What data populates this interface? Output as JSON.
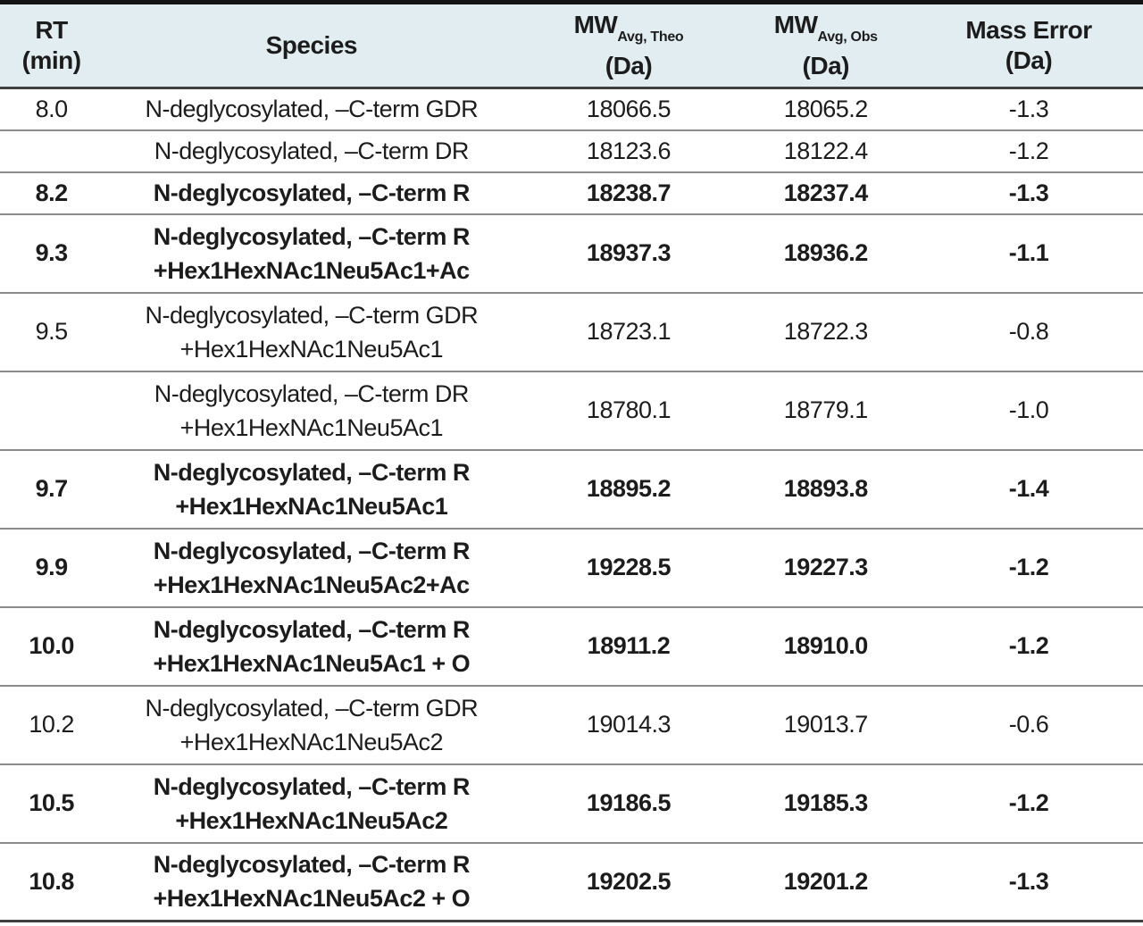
{
  "colors": {
    "header_bg": "#e2edf1",
    "border_dark": "#141414",
    "border_gray": "#8c8c8c",
    "text": "#1c1c1c"
  },
  "table": {
    "headers": [
      {
        "line1": "RT",
        "sub": "",
        "line2": "(min)"
      },
      {
        "line1": "Species",
        "sub": "",
        "line2": ""
      },
      {
        "line1": "MW",
        "sub": "Avg, Theo",
        "line2": "(Da)"
      },
      {
        "line1": "MW",
        "sub": "Avg, Obs",
        "line2": "(Da)"
      },
      {
        "line1": "Mass Error",
        "sub": "",
        "line2": "(Da)"
      }
    ],
    "rows": [
      {
        "rt": "8.0",
        "species_line1": "N-deglycosylated, –C-term GDR",
        "species_line2": "",
        "mw_theo": "18066.5",
        "mw_obs": "18065.2",
        "mass_error": "-1.3",
        "bold": false
      },
      {
        "rt": "",
        "species_line1": "N-deglycosylated, –C-term DR",
        "species_line2": "",
        "mw_theo": "18123.6",
        "mw_obs": "18122.4",
        "mass_error": "-1.2",
        "bold": false
      },
      {
        "rt": "8.2",
        "species_line1": "N-deglycosylated, –C-term R",
        "species_line2": "",
        "mw_theo": "18238.7",
        "mw_obs": "18237.4",
        "mass_error": "-1.3",
        "bold": true
      },
      {
        "rt": "9.3",
        "species_line1": "N-deglycosylated, –C-term R",
        "species_line2": "+Hex1HexNAc1Neu5Ac1+Ac",
        "mw_theo": "18937.3",
        "mw_obs": "18936.2",
        "mass_error": "-1.1",
        "bold": true
      },
      {
        "rt": "9.5",
        "species_line1": "N-deglycosylated, –C-term GDR",
        "species_line2": "+Hex1HexNAc1Neu5Ac1",
        "mw_theo": "18723.1",
        "mw_obs": "18722.3",
        "mass_error": "-0.8",
        "bold": false
      },
      {
        "rt": "",
        "species_line1": "N-deglycosylated, –C-term DR",
        "species_line2": "+Hex1HexNAc1Neu5Ac1",
        "mw_theo": "18780.1",
        "mw_obs": "18779.1",
        "mass_error": "-1.0",
        "bold": false
      },
      {
        "rt": "9.7",
        "species_line1": "N-deglycosylated, –C-term R",
        "species_line2": "+Hex1HexNAc1Neu5Ac1",
        "mw_theo": "18895.2",
        "mw_obs": "18893.8",
        "mass_error": "-1.4",
        "bold": true
      },
      {
        "rt": "9.9",
        "species_line1": "N-deglycosylated, –C-term R",
        "species_line2": "+Hex1HexNAc1Neu5Ac2+Ac",
        "mw_theo": "19228.5",
        "mw_obs": "19227.3",
        "mass_error": "-1.2",
        "bold": true
      },
      {
        "rt": "10.0",
        "species_line1": "N-deglycosylated, –C-term R",
        "species_line2": "+Hex1HexNAc1Neu5Ac1 + O",
        "mw_theo": "18911.2",
        "mw_obs": "18910.0",
        "mass_error": "-1.2",
        "bold": true
      },
      {
        "rt": "10.2",
        "species_line1": "N-deglycosylated, –C-term GDR",
        "species_line2": "+Hex1HexNAc1Neu5Ac2",
        "mw_theo": "19014.3",
        "mw_obs": "19013.7",
        "mass_error": "-0.6",
        "bold": false
      },
      {
        "rt": "10.5",
        "species_line1": "N-deglycosylated, –C-term R",
        "species_line2": "+Hex1HexNAc1Neu5Ac2",
        "mw_theo": "19186.5",
        "mw_obs": "19185.3",
        "mass_error": "-1.2",
        "bold": true
      },
      {
        "rt": "10.8",
        "species_line1": "N-deglycosylated, –C-term R",
        "species_line2": "+Hex1HexNAc1Neu5Ac2 + O",
        "mw_theo": "19202.5",
        "mw_obs": "19201.2",
        "mass_error": "-1.3",
        "bold": true
      }
    ]
  }
}
